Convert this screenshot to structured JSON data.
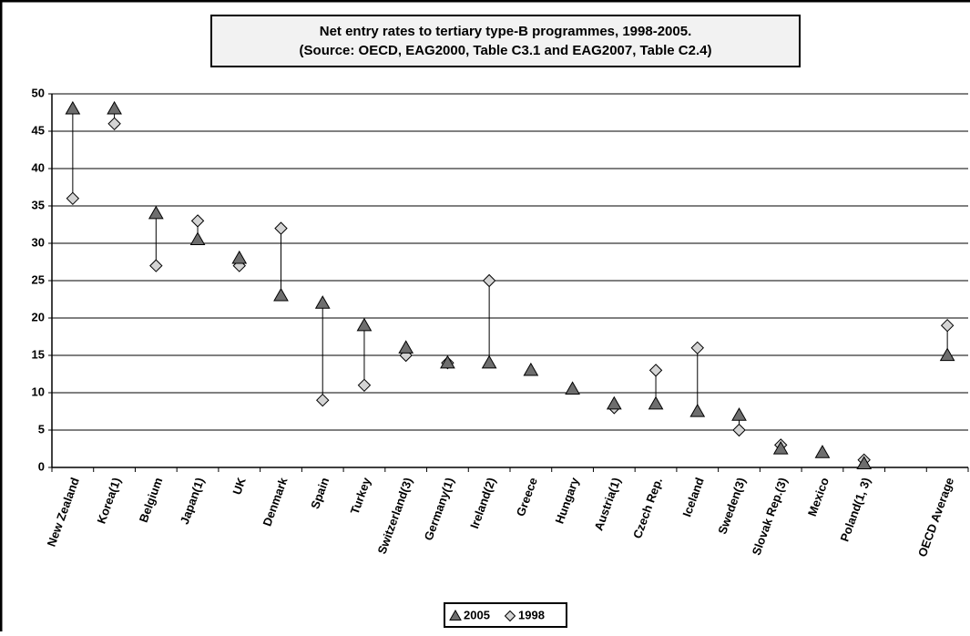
{
  "chart_data": {
    "type": "highlow",
    "title": "Net entry rates to tertiary type-B programmes, 1998-2005.",
    "subtitle": "(Source: OECD, EAG2000, Table C3.1 and EAG2007, Table C2.4)",
    "categories": [
      "New Zealand",
      "Korea(1)",
      "Belgium",
      "Japan(1)",
      "UK",
      "Denmark",
      "Spain",
      "Turkey",
      "Switzerland(3)",
      "Germany(1)",
      "Ireland(2)",
      "Greece",
      "Hungary",
      "Austria(1)",
      "Czech Rep.",
      "Iceland",
      "Sweden(3)",
      "Slovak Rep.(3)",
      "Mexico",
      "Poland(1, 3)",
      null,
      "OECD Average"
    ],
    "series": [
      {
        "name": "2005",
        "color": "#6e6e6e",
        "marker": "triangle",
        "values": [
          48,
          48,
          34,
          30.5,
          28,
          23,
          22,
          19,
          16,
          14,
          14,
          13,
          10.5,
          8.5,
          8.5,
          7.5,
          7,
          2.5,
          2,
          0.5,
          null,
          15
        ]
      },
      {
        "name": "1998",
        "color": "#d4d4d4",
        "marker": "diamond",
        "values": [
          36,
          46,
          27,
          33,
          27,
          32,
          9,
          11,
          15,
          14,
          25,
          null,
          null,
          8,
          13,
          16,
          5,
          3,
          null,
          1,
          null,
          19
        ]
      }
    ],
    "ylim": [
      0,
      50
    ],
    "yticks": [
      0,
      5,
      10,
      15,
      20,
      25,
      30,
      35,
      40,
      45,
      50
    ],
    "grid": true,
    "legend": "bottom"
  }
}
